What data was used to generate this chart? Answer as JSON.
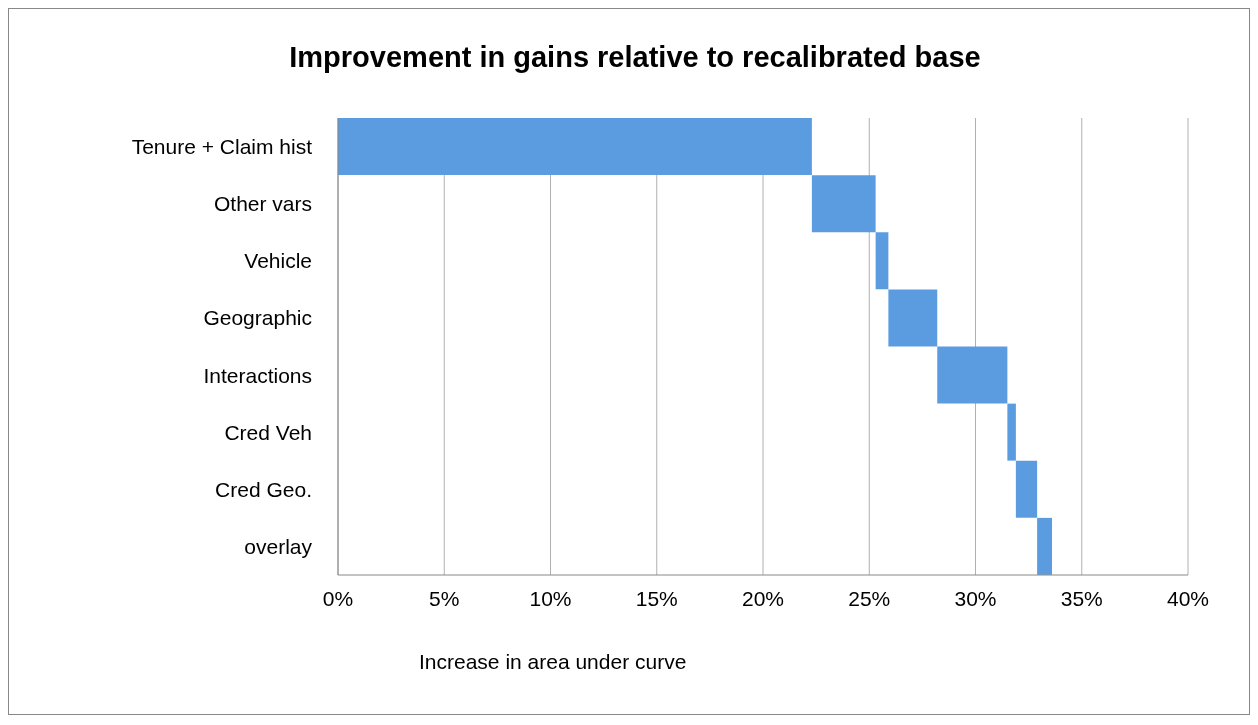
{
  "chart_data": {
    "type": "bar",
    "orientation": "horizontal",
    "title": "Improvement in gains relative to recalibrated base",
    "xlabel": "Increase in area under curve",
    "categories": [
      "Tenure + Claim hist",
      "Other vars",
      "Vehicle",
      "Geographic",
      "Interactions",
      "Cred Veh",
      "Cred Geo.",
      "overlay"
    ],
    "values": [
      22.3,
      3.0,
      0.6,
      2.3,
      3.3,
      0.4,
      1.0,
      0.7
    ],
    "base": [
      0,
      22.3,
      25.3,
      25.9,
      28.2,
      31.5,
      31.9,
      32.9
    ],
    "color": "#5b9be0",
    "xlim": [
      0,
      40
    ],
    "xticks": [
      {
        "value": 0,
        "label": "0%"
      },
      {
        "value": 5,
        "label": "5%"
      },
      {
        "value": 10,
        "label": "10%"
      },
      {
        "value": 15,
        "label": "15%"
      },
      {
        "value": 20,
        "label": "20%"
      },
      {
        "value": 25,
        "label": "25%"
      },
      {
        "value": 30,
        "label": "30%"
      },
      {
        "value": 35,
        "label": "35%"
      },
      {
        "value": 40,
        "label": "40%"
      }
    ],
    "grid": "x",
    "legend": false
  }
}
